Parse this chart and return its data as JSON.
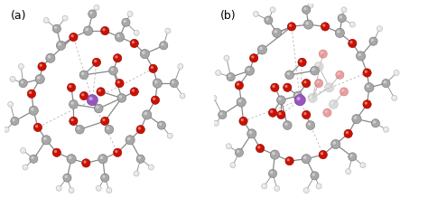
{
  "figsize": [
    4.74,
    2.4
  ],
  "dpi": 100,
  "bg_color": "#ffffff",
  "label_a": "(a)",
  "label_b": "(b)",
  "label_fontsize": 9,
  "colors": {
    "carbon": "#a8a8a8",
    "carbon_edge": "#707070",
    "oxygen": "#cc1100",
    "oxygen_edge": "#880000",
    "hydrogen": "#e8e8e8",
    "hydrogen_edge": "#b0b0b0",
    "metal": "#9955bb",
    "metal_edge": "#6633aa",
    "bond": "#888888",
    "dashed": "#aaaaaa",
    "light_carbon": "#d0d0d0",
    "light_oxygen": "#e08080"
  },
  "atom_sizes": {
    "carbon": 0.022,
    "oxygen": 0.02,
    "hydrogen": 0.013,
    "metal": 0.026,
    "light": 0.022
  }
}
